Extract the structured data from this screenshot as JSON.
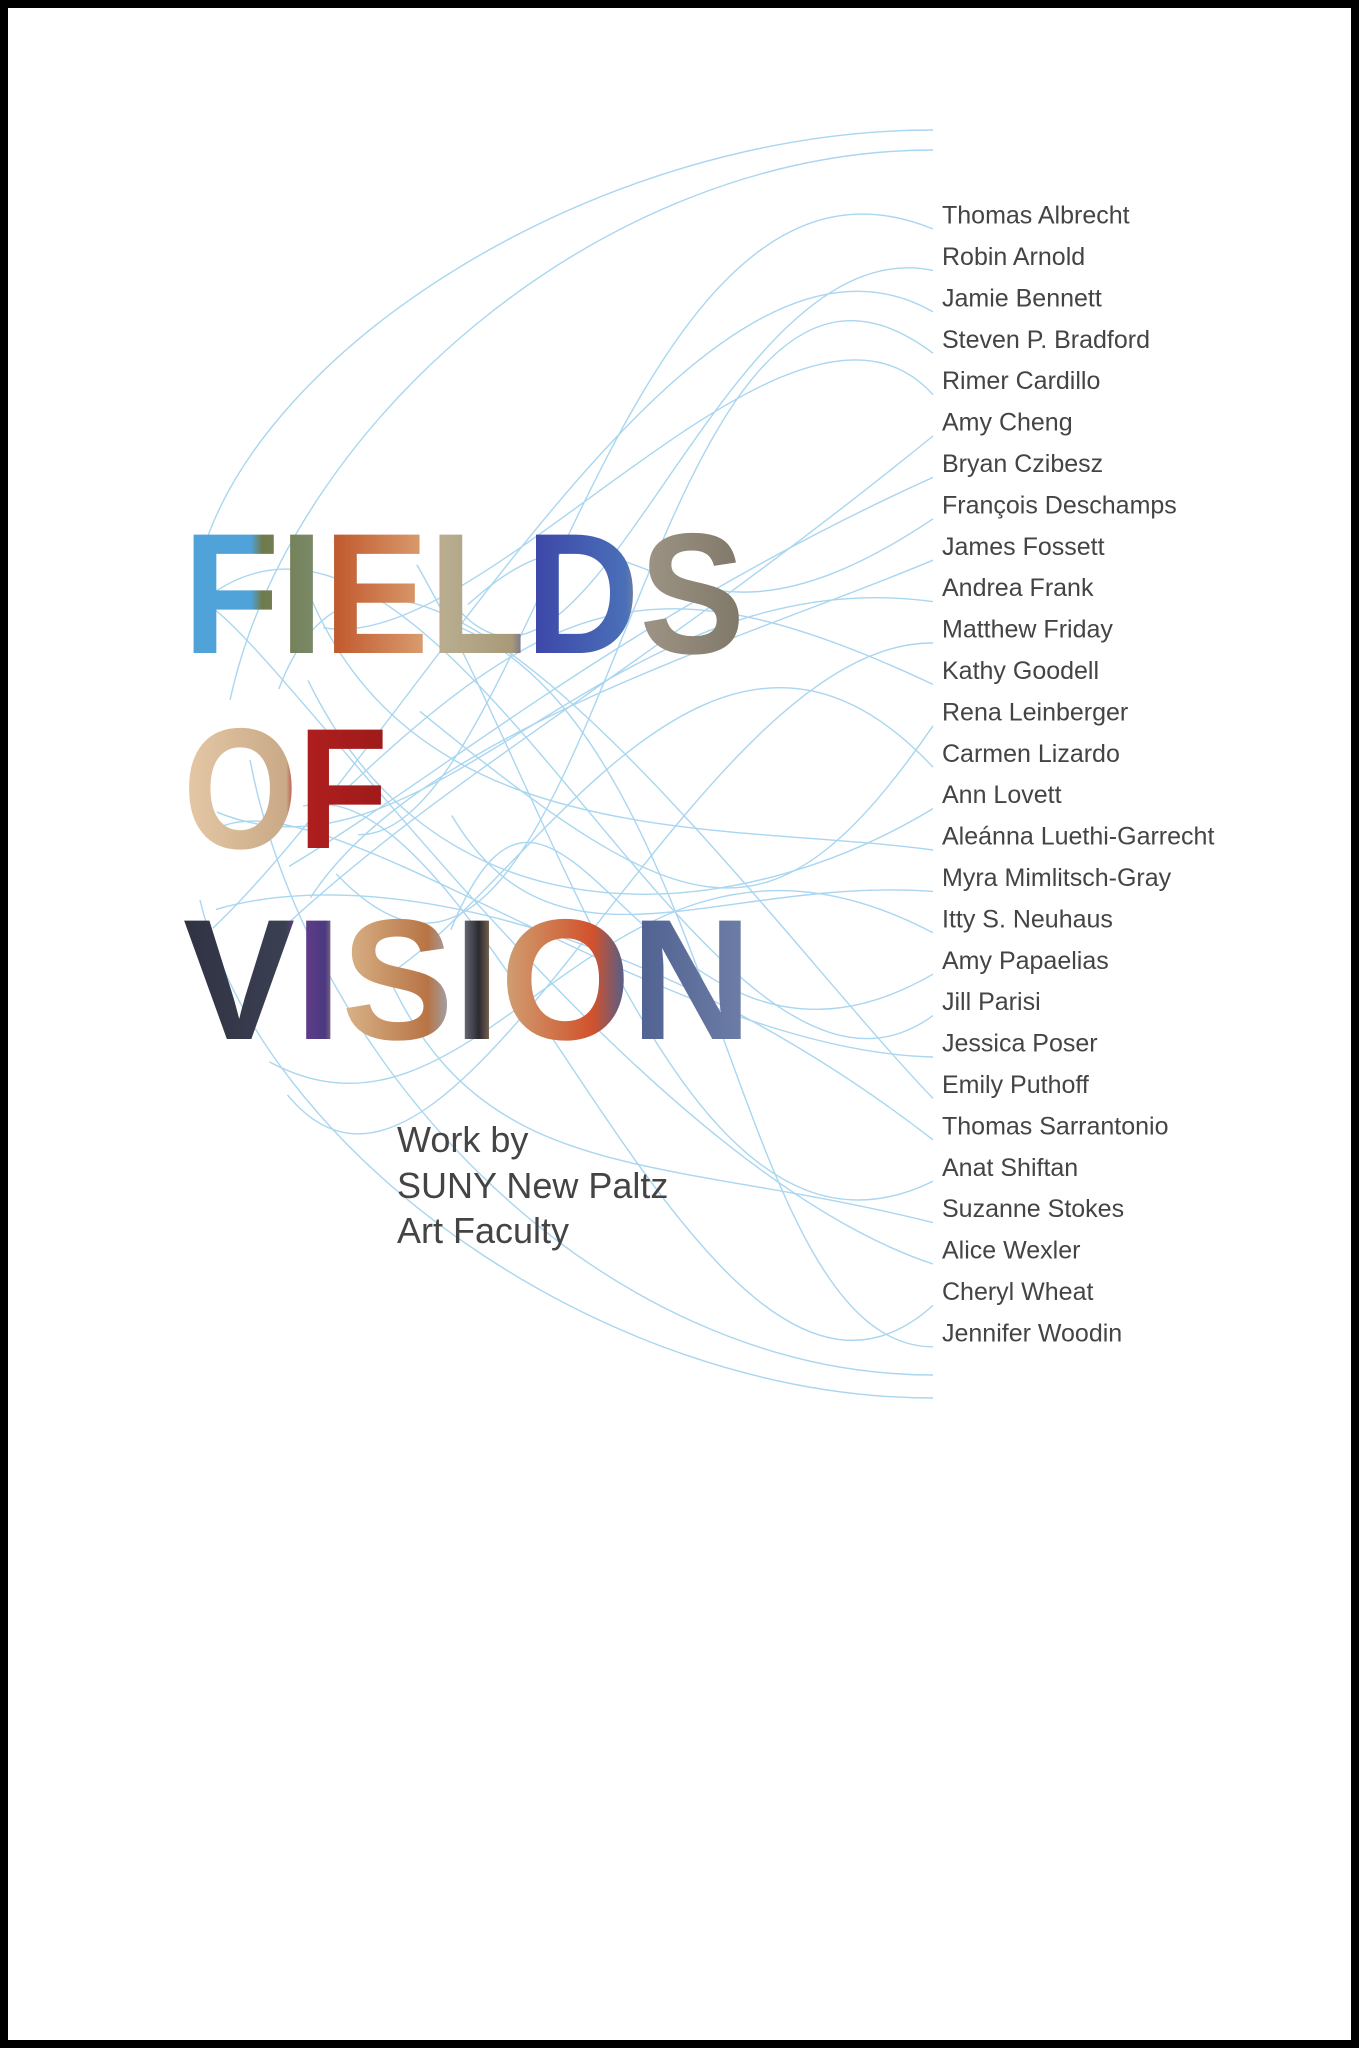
{
  "title": [
    "FIELDS",
    "OF",
    "VISION"
  ],
  "subtitle": [
    "Work by",
    "SUNY New Paltz",
    "Art Faculty"
  ],
  "names": [
    "Thomas Albrecht",
    "Robin Arnold",
    "Jamie Bennett",
    "Steven P. Bradford",
    "Rimer Cardillo",
    "Amy Cheng",
    "Bryan Czibesz",
    "François Deschamps",
    "James Fossett",
    "Andrea Frank",
    "Matthew Friday",
    "Kathy Goodell",
    "Rena Leinberger",
    "Carmen Lizardo",
    "Ann Lovett",
    "Aleánna Luethi-Garrecht",
    "Myra Mimlitsch-Gray",
    "Itty S. Neuhaus",
    "Amy Papaelias",
    "Jill Parisi",
    "Jessica Poser",
    "Emily Puthoff",
    "Thomas Sarrantonio",
    "Anat Shiftan",
    "Suzanne Stokes",
    "Alice Wexler",
    "Cheryl Wheat",
    "Jennifer Woodin"
  ]
}
